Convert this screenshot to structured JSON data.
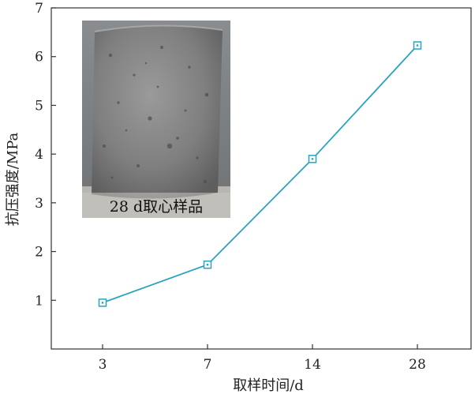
{
  "chart_data": {
    "type": "line",
    "categories": [
      "3",
      "7",
      "14",
      "28"
    ],
    "series": [
      {
        "values": [
          0.95,
          1.73,
          3.9,
          6.23
        ]
      }
    ],
    "xlabel": "取样时间/d",
    "ylabel": "抗压强度/MPa",
    "ylim": [
      0,
      7
    ],
    "yticks": [
      "1",
      "2",
      "3",
      "4",
      "5",
      "6",
      "7"
    ],
    "grid": false,
    "marker": "open-square",
    "line_color": "#2aa3c0",
    "inset_caption": "28 d取心样品"
  }
}
